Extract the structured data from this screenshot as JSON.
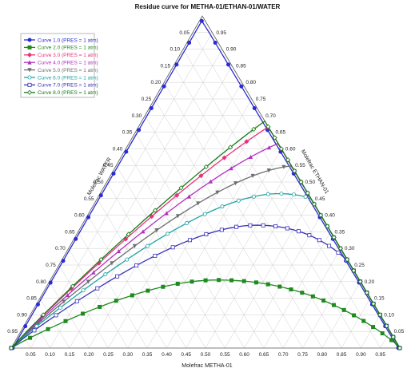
{
  "chart_data": {
    "type": "line",
    "chart_kind": "ternary residue curve map",
    "title": "Residue curve for METHA-01/ETHAN-01/WATER",
    "xlabel": "Molefrac METHA-01",
    "left_axis_label": "Molefrac WATER",
    "right_axis_label": "Molefrac ETHAN-01",
    "ticks": [
      "0.05",
      "0.10",
      "0.15",
      "0.20",
      "0.25",
      "0.30",
      "0.35",
      "0.40",
      "0.45",
      "0.50",
      "0.55",
      "0.60",
      "0.65",
      "0.70",
      "0.75",
      "0.80",
      "0.85",
      "0.90",
      "0.95"
    ],
    "grid": true,
    "legend_position": "top-left",
    "series": [
      {
        "name": "Curve 1.0 (PRES = 1 atm)",
        "color": "#2b2bd4",
        "marker": "circle-filled",
        "peak_water": 0.01,
        "peak_metha": 0.5,
        "skew": 0.85
      },
      {
        "name": "Curve 2.0 (PRES = 1 atm)",
        "color": "#1f8a1f",
        "marker": "square-filled",
        "peak_water": 0.205,
        "peak_metha": 0.43,
        "skew": 0.6
      },
      {
        "name": "Curve 3.0 (PRES = 1 atm)",
        "color": "#e8327d",
        "marker": "diamond-filled",
        "peak_water": 0.8,
        "peak_metha": 0.55,
        "skew": 0.6
      },
      {
        "name": "Curve 4.0 (PRES = 1 atm)",
        "color": "#b32fc4",
        "marker": "triangle-filled",
        "peak_water": 0.655,
        "peak_metha": 0.5,
        "skew": 0.6
      },
      {
        "name": "Curve 5.0 (PRES = 1 atm)",
        "color": "#6e6e6e",
        "marker": "triangle-down-filled",
        "peak_water": 0.55,
        "peak_metha": 0.475,
        "skew": 0.6
      },
      {
        "name": "Curve 6.0 (PRES = 1 atm)",
        "color": "#1ea3a3",
        "marker": "circle-open",
        "peak_water": 0.465,
        "peak_metha": 0.46,
        "skew": 0.6
      },
      {
        "name": "Curve 7.0 (PRES = 1 atm)",
        "color": "#3a32b8",
        "marker": "square-open",
        "peak_water": 0.37,
        "peak_metha": 0.45,
        "skew": 0.6
      },
      {
        "name": "Curve 8.0 (PRES = 1 atm)",
        "color": "#157a15",
        "marker": "diamond-open",
        "peak_water": 0.9,
        "peak_metha": 0.6,
        "skew": 0.6
      }
    ]
  }
}
